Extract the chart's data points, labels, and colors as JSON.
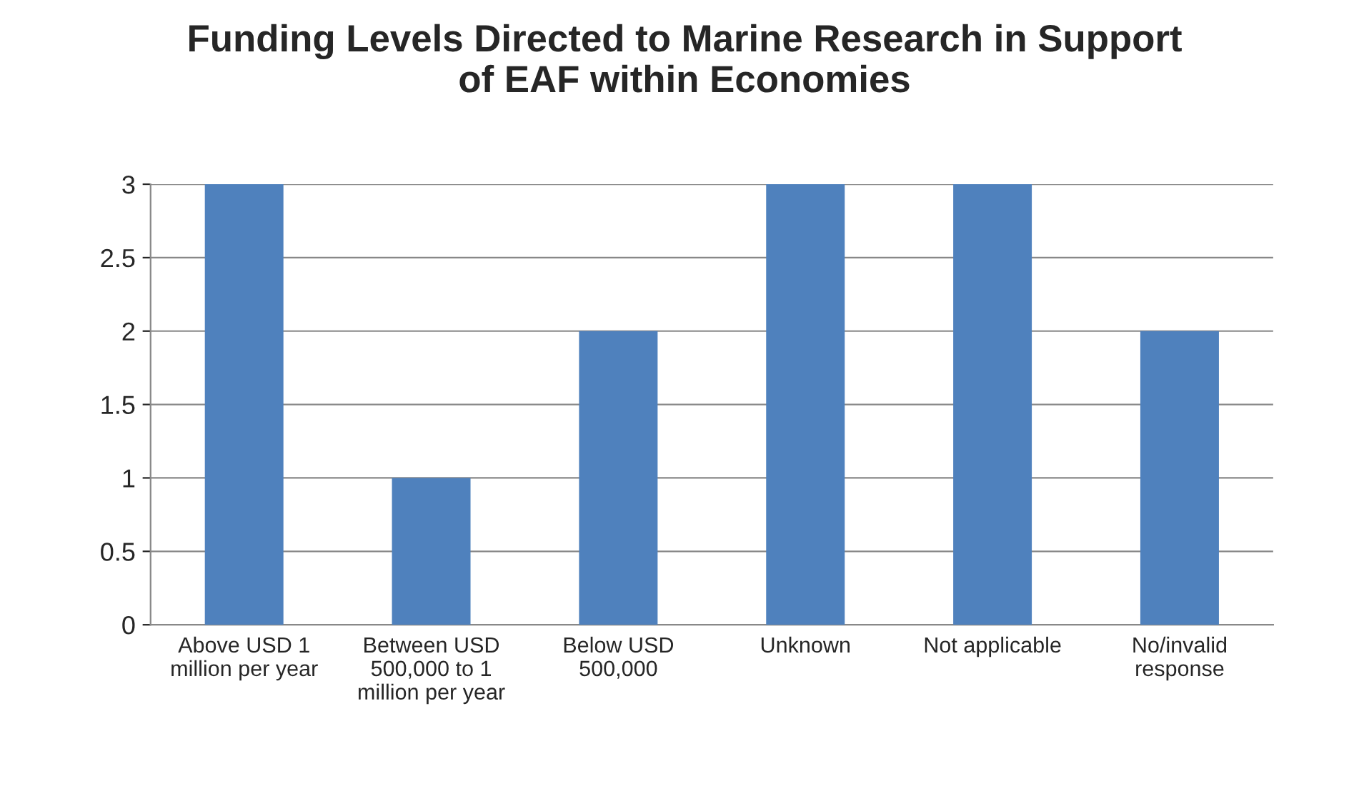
{
  "chart_data": {
    "type": "bar",
    "title": "Funding Levels Directed to Marine Research in Support\nof EAF within Economies",
    "categories": [
      "Above USD 1\nmillion per year",
      "Between USD\n500,000 to 1\nmillion per year",
      "Below USD\n500,000",
      "Unknown",
      "Not applicable",
      "No/invalid\nresponse"
    ],
    "values": [
      3,
      1,
      2,
      3,
      3,
      2
    ],
    "color": "#4f81bd",
    "ylim": [
      0,
      3
    ],
    "yticks": [
      0,
      0.5,
      1,
      1.5,
      2,
      2.5,
      3
    ],
    "grid": "y",
    "legend": false
  }
}
